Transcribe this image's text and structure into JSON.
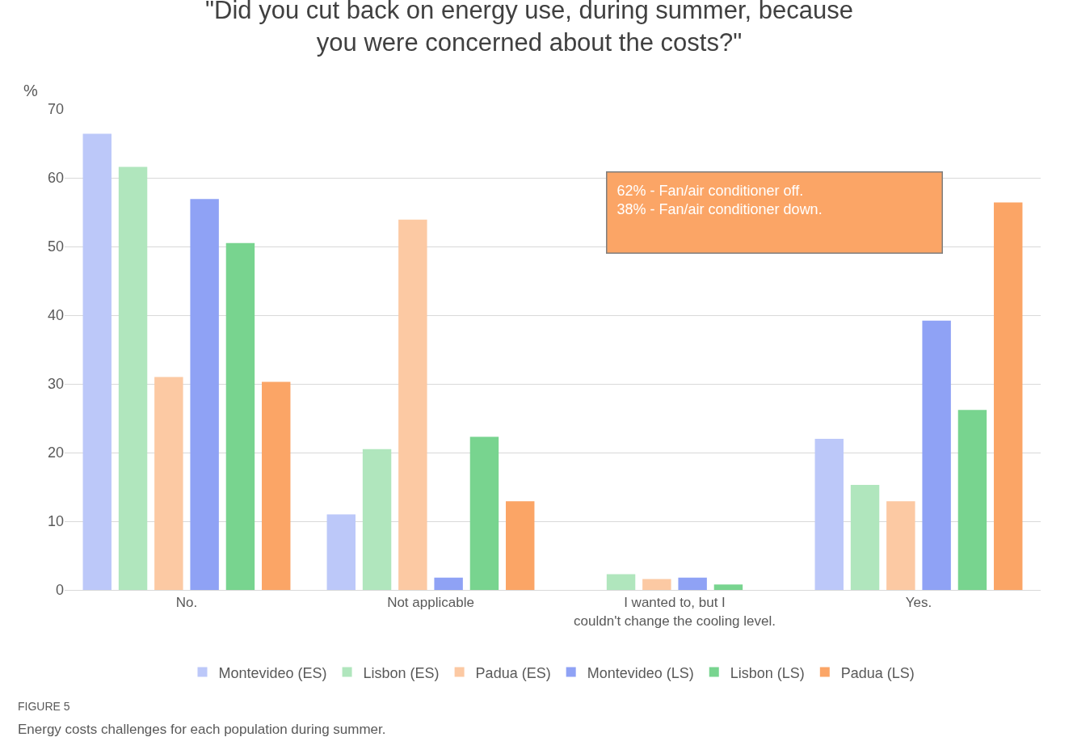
{
  "chart_data": {
    "type": "bar",
    "title": "\"Did you cut back on energy use, during summer, because you were concerned about the costs?\"",
    "ylabel": "%",
    "categories": [
      "No.",
      "Not applicable",
      "I wanted to, but I couldn't change the cooling level.",
      "Yes."
    ],
    "series": [
      {
        "name": "Montevideo (ES)",
        "color": "#bcc8f9",
        "values": [
          66.4,
          11.0,
          null,
          22.0
        ]
      },
      {
        "name": "Lisbon (ES)",
        "color": "#b0e6bd",
        "values": [
          61.6,
          20.5,
          2.3,
          15.3
        ]
      },
      {
        "name": "Padua (ES)",
        "color": "#fcc9a3",
        "values": [
          31.0,
          53.9,
          1.6,
          12.9
        ]
      },
      {
        "name": "Montevideo (LS)",
        "color": "#8fa2f5",
        "values": [
          56.9,
          1.8,
          1.8,
          39.2
        ]
      },
      {
        "name": "Lisbon (LS)",
        "color": "#78d48f",
        "values": [
          50.5,
          22.3,
          0.8,
          26.2
        ]
      },
      {
        "name": "Padua (LS)",
        "color": "#fba566",
        "values": [
          30.3,
          12.9,
          null,
          56.4
        ]
      }
    ],
    "ylim": [
      0,
      70
    ],
    "yticks": [
      0,
      10,
      20,
      30,
      40,
      50,
      60,
      70
    ],
    "grid": "y",
    "legend": "bottom",
    "annotations": [
      "62% - Fan/air conditioner off.\n38% - Fan/air conditioner down.",
      "FIGURE 5",
      "Energy costs challenges for each population during summer."
    ]
  }
}
